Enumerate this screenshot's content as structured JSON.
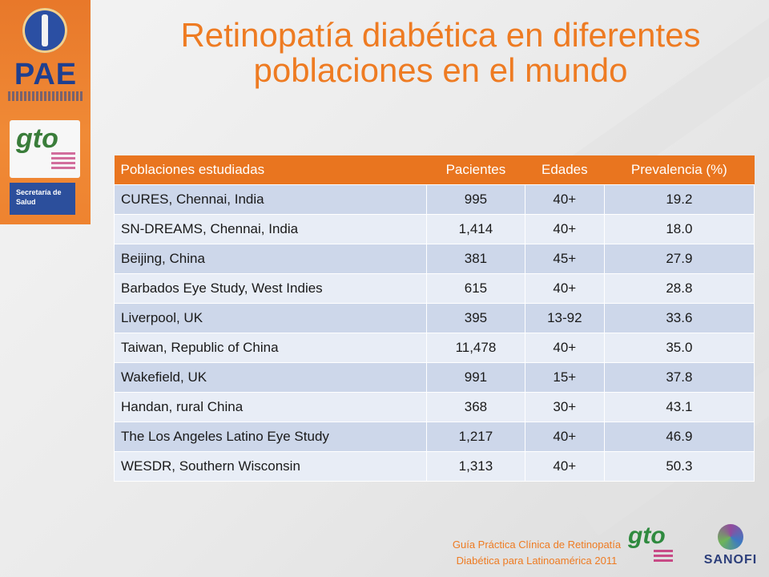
{
  "title": {
    "line1": "Retinopatía diabética en diferentes",
    "line2": "poblaciones en el mundo"
  },
  "logos": {
    "pae": "PAE",
    "gto": "gto",
    "secretaria": "Secretaría de Salud",
    "sanofi": "SANOFI"
  },
  "table": {
    "headers": [
      "Poblaciones estudiadas",
      "Pacientes",
      "Edades",
      "Prevalencia (%)"
    ],
    "rows": [
      [
        "CURES, Chennai, India",
        "995",
        "40+",
        "19.2"
      ],
      [
        "SN-DREAMS, Chennai, India",
        "1,414",
        "40+",
        "18.0"
      ],
      [
        "Beijing, China",
        "381",
        "45+",
        "27.9"
      ],
      [
        "Barbados Eye Study, West Indies",
        "615",
        "40+",
        "28.8"
      ],
      [
        "Liverpool, UK",
        "395",
        "13-92",
        "33.6"
      ],
      [
        "Taiwan, Republic of China",
        "11,478",
        "40+",
        "35.0"
      ],
      [
        "Wakefield, UK",
        "991",
        "15+",
        "37.8"
      ],
      [
        "Handan, rural China",
        "368",
        "30+",
        "43.1"
      ],
      [
        "The Los Angeles Latino Eye Study",
        "1,217",
        "40+",
        "46.9"
      ],
      [
        "WESDR, Southern Wisconsin",
        "1,313",
        "40+",
        "50.3"
      ]
    ]
  },
  "footer": {
    "line1": "Guía Práctica Clínica de Retinopatía",
    "line2": "Diabética para Latinoamérica  2011"
  },
  "colors": {
    "accent": "#ee7b22",
    "header_bg": "#e9751f",
    "row_odd": "#cdd7ea",
    "row_even": "#e8edf6",
    "brand_blue": "#2c4f9c"
  }
}
